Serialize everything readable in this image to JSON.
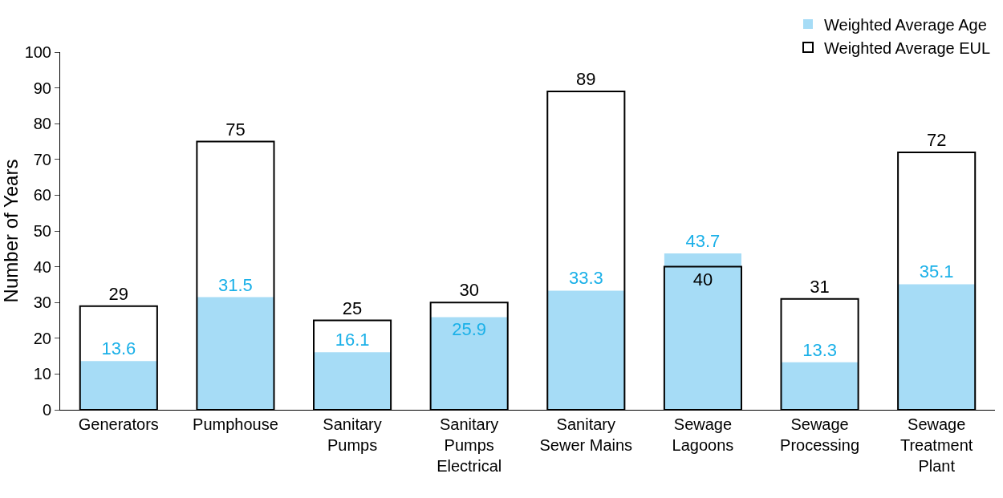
{
  "chart_data": {
    "type": "bar",
    "ylabel": "Number of Years",
    "categories": [
      "Generators",
      "Pumphouse",
      "Sanitary Pumps",
      "Sanitary Pumps Electrical",
      "Sanitary Sewer Mains",
      "Sewage Lagoons",
      "Sewage Processing",
      "Sewage Treatment Plant"
    ],
    "series": [
      {
        "name": "Weighted Average Age",
        "color": "#a6dcf6",
        "values": [
          13.6,
          31.5,
          16.1,
          25.9,
          33.3,
          43.7,
          13.3,
          35.1
        ]
      },
      {
        "name": "Weighted Average EUL",
        "color": "#000000",
        "values": [
          29,
          75,
          25,
          30,
          89,
          40,
          31,
          72
        ]
      }
    ],
    "ylim": [
      0,
      100
    ],
    "yticks": [
      0,
      10,
      20,
      30,
      40,
      50,
      60,
      70,
      80,
      90,
      100
    ],
    "data_labels": true,
    "legend": "top right",
    "grid": false
  }
}
